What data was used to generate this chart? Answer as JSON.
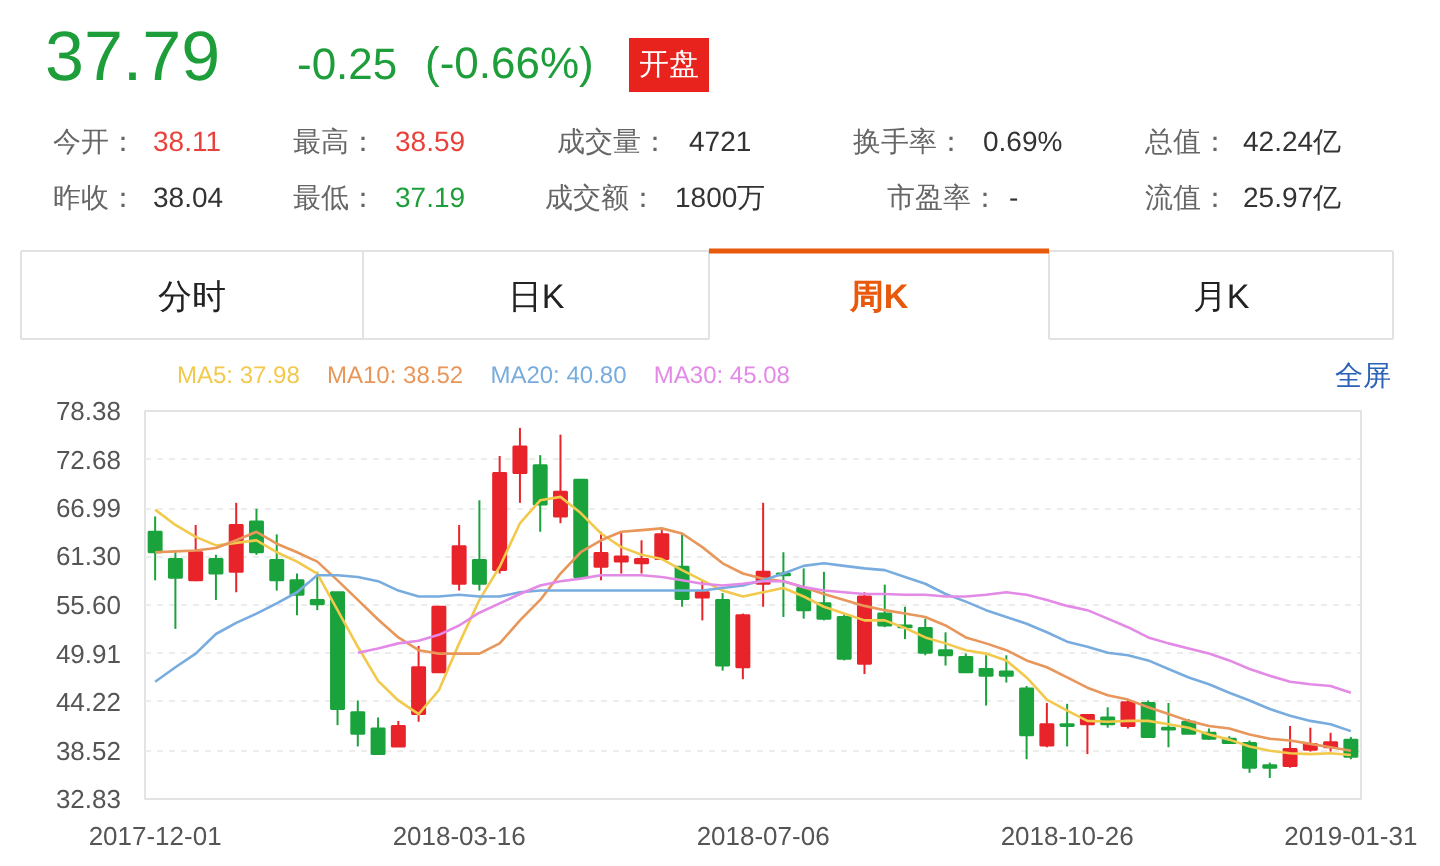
{
  "chart_data": [
    {
      "type": "other",
      "annotations": [
        "37.79",
        "-0.25",
        "(-0.66%)",
        "开盘",
        "今开：",
        "38.11",
        "最高：",
        "38.59",
        "成交量：",
        "4721",
        "换手率：",
        "0.69%",
        "总值：",
        "42.24亿",
        "昨收：",
        "38.04",
        "最低：",
        "37.19",
        "成交额：",
        "1800万",
        "市盈率：",
        "-",
        "流值：",
        "25.97亿",
        "分时",
        "日K",
        "周K",
        "月K"
      ]
    },
    {
      "type": "candlestick",
      "grid": "y",
      "annotations": [
        "全屏"
      ],
      "categories": [
        "2017-12-01",
        null,
        null,
        null,
        null,
        null,
        null,
        null,
        null,
        null,
        null,
        null,
        null,
        null,
        null,
        "2018-03-16",
        null,
        null,
        null,
        null,
        null,
        null,
        null,
        null,
        null,
        null,
        null,
        null,
        null,
        null,
        "2018-07-06",
        null,
        null,
        null,
        null,
        null,
        null,
        null,
        null,
        null,
        null,
        null,
        null,
        null,
        null,
        "2018-10-26",
        null,
        null,
        null,
        null,
        null,
        null,
        null,
        null,
        null,
        null,
        null,
        null,
        null,
        "2019-01-31"
      ],
      "ylim": [
        32.83,
        78.38
      ],
      "yticks": [
        32.83,
        38.52,
        44.22,
        49.91,
        {
          "value": 55.6,
          "label": "55.60"
        },
        {
          "value": 61.3,
          "label": "61.30"
        },
        66.99,
        72.68,
        78.38
      ],
      "ohlc": [
        [
          64.2,
          66.0,
          58.5,
          61.8
        ],
        [
          61.0,
          61.8,
          52.8,
          58.8
        ],
        [
          58.5,
          65.0,
          58.4,
          61.8
        ],
        [
          61.0,
          61.5,
          56.2,
          59.3
        ],
        [
          59.5,
          67.6,
          57.1,
          65.0
        ],
        [
          65.4,
          66.9,
          61.5,
          61.8
        ],
        [
          60.9,
          63.9,
          57.3,
          58.5
        ],
        [
          58.5,
          59.3,
          54.4,
          56.8
        ],
        [
          56.2,
          59.5,
          55.0,
          55.7
        ],
        [
          57.1,
          57.1,
          41.5,
          43.4
        ],
        [
          43.0,
          44.4,
          39.0,
          40.5
        ],
        [
          41.1,
          42.4,
          38.1,
          38.1
        ],
        [
          39.0,
          42.0,
          39.0,
          41.4
        ],
        [
          42.8,
          50.8,
          41.9,
          48.3
        ],
        [
          47.7,
          55.5,
          47.7,
          55.4
        ],
        [
          58.1,
          65.0,
          57.3,
          62.5
        ],
        [
          60.9,
          67.9,
          57.3,
          58.1
        ],
        [
          59.7,
          73.1,
          59.3,
          71.1
        ],
        [
          71.1,
          76.4,
          67.6,
          74.2
        ],
        [
          72.0,
          73.2,
          64.2,
          67.4
        ],
        [
          66.0,
          75.6,
          65.2,
          68.9
        ],
        [
          70.3,
          70.3,
          58.9,
          58.9
        ],
        [
          60.1,
          64.2,
          58.5,
          61.7
        ],
        [
          60.7,
          64.2,
          59.3,
          61.3
        ],
        [
          60.5,
          63.2,
          59.3,
          61.0
        ],
        [
          61.0,
          64.4,
          60.9,
          63.9
        ],
        [
          60.1,
          63.9,
          55.4,
          56.3
        ],
        [
          56.5,
          58.5,
          53.8,
          57.1
        ],
        [
          56.2,
          57.0,
          47.9,
          48.5
        ],
        [
          48.3,
          54.6,
          46.9,
          54.4
        ],
        [
          58.1,
          67.6,
          55.4,
          59.5
        ],
        [
          59.3,
          61.8,
          54.2,
          59.1
        ],
        [
          57.6,
          59.9,
          54.0,
          55.0
        ],
        [
          55.8,
          59.5,
          53.8,
          54.0
        ],
        [
          54.2,
          54.6,
          49.1,
          49.3
        ],
        [
          48.7,
          57.1,
          47.5,
          56.6
        ],
        [
          54.6,
          58.0,
          53.0,
          53.2
        ],
        [
          53.2,
          55.4,
          51.6,
          53.0
        ],
        [
          52.9,
          54.0,
          49.7,
          50.0
        ],
        [
          50.3,
          52.4,
          48.5,
          49.7
        ],
        [
          49.5,
          49.9,
          47.7,
          47.7
        ],
        [
          48.1,
          49.7,
          43.8,
          47.3
        ],
        [
          47.8,
          49.7,
          46.5,
          47.3
        ],
        [
          45.8,
          46.1,
          37.5,
          40.3
        ],
        [
          39.1,
          44.1,
          38.9,
          41.6
        ],
        [
          41.6,
          44.0,
          39.0,
          41.4
        ],
        [
          41.6,
          42.8,
          38.1,
          42.7
        ],
        [
          42.4,
          43.6,
          41.2,
          41.6
        ],
        [
          41.4,
          44.5,
          41.1,
          44.2
        ],
        [
          44.1,
          44.4,
          40.1,
          40.1
        ],
        [
          41.2,
          44.1,
          38.9,
          41.0
        ],
        [
          41.9,
          42.2,
          40.5,
          40.5
        ],
        [
          40.6,
          41.1,
          39.8,
          39.9
        ],
        [
          39.9,
          40.2,
          39.3,
          39.4
        ],
        [
          39.4,
          39.7,
          35.9,
          36.5
        ],
        [
          36.8,
          37.1,
          35.3,
          36.5
        ],
        [
          36.7,
          41.4,
          36.5,
          38.7
        ],
        [
          38.6,
          41.2,
          38.4,
          39.3
        ],
        [
          38.9,
          40.6,
          38.4,
          39.5
        ],
        [
          39.8,
          40.1,
          37.5,
          37.8
        ]
      ],
      "colors": [
        "#1aa33c",
        "#1aa33c",
        "#e8232a",
        "#1aa33c",
        "#e8232a",
        "#1aa33c",
        "#1aa33c",
        "#1aa33c",
        "#1aa33c",
        "#1aa33c",
        "#1aa33c",
        "#1aa33c",
        "#e8232a",
        "#e8232a",
        "#e8232a",
        "#e8232a",
        "#1aa33c",
        "#e8232a",
        "#e8232a",
        "#1aa33c",
        "#e8232a",
        "#1aa33c",
        "#e8232a",
        "#e8232a",
        "#e8232a",
        "#e8232a",
        "#1aa33c",
        "#e8232a",
        "#1aa33c",
        "#e8232a",
        "#e8232a",
        "#1aa33c",
        "#1aa33c",
        "#1aa33c",
        "#1aa33c",
        "#e8232a",
        "#1aa33c",
        "#1aa33c",
        "#1aa33c",
        "#1aa33c",
        "#1aa33c",
        "#1aa33c",
        "#1aa33c",
        "#1aa33c",
        "#e8232a",
        "#1aa33c",
        "#e8232a",
        "#1aa33c",
        "#e8232a",
        "#1aa33c",
        "#1aa33c",
        "#1aa33c",
        "#1aa33c",
        "#1aa33c",
        "#1aa33c",
        "#1aa33c",
        "#e8232a",
        "#e8232a",
        "#e8232a",
        "#1aa33c"
      ],
      "series": [
        {
          "type": "line",
          "name": "MA5: 37.98",
          "color": "#f2c94c",
          "values": [
            66.8,
            65.0,
            63.6,
            62.6,
            62.9,
            63.2,
            61.8,
            60.7,
            59.3,
            55.0,
            50.7,
            46.7,
            44.4,
            42.8,
            45.6,
            51.1,
            56.2,
            60.1,
            65.2,
            67.9,
            68.3,
            66.4,
            64.0,
            62.4,
            61.5,
            61.0,
            59.7,
            58.5,
            57.3,
            56.6,
            57.1,
            57.6,
            56.6,
            55.4,
            54.6,
            53.8,
            53.8,
            52.9,
            51.8,
            51.1,
            50.3,
            49.9,
            49.1,
            47.1,
            44.5,
            43.2,
            42.0,
            41.9,
            42.0,
            42.0,
            41.6,
            41.2,
            40.4,
            39.8,
            39.0,
            38.5,
            38.2,
            38.1,
            38.2,
            38.0
          ]
        },
        {
          "type": "line",
          "name": "MA10: 38.52",
          "color": "#e8965a",
          "values": [
            61.8,
            61.9,
            62.0,
            62.3,
            63.2,
            64.2,
            62.8,
            61.8,
            60.7,
            58.5,
            56.2,
            53.9,
            51.8,
            50.3,
            49.9,
            49.9,
            49.9,
            51.1,
            53.8,
            56.2,
            59.3,
            61.8,
            63.2,
            64.2,
            64.4,
            64.6,
            64.0,
            62.4,
            60.5,
            59.3,
            58.7,
            58.4,
            57.7,
            56.9,
            56.2,
            55.5,
            55.0,
            54.6,
            54.2,
            53.2,
            51.8,
            51.1,
            50.3,
            49.1,
            48.3,
            47.1,
            45.9,
            45.0,
            44.5,
            43.6,
            42.8,
            42.0,
            41.4,
            41.1,
            40.4,
            39.9,
            39.7,
            39.3,
            38.9,
            38.5
          ]
        },
        {
          "type": "line",
          "name": "MA20: 40.80",
          "color": "#78acdf",
          "values": [
            46.6,
            48.3,
            49.9,
            52.2,
            53.5,
            54.6,
            55.8,
            57.1,
            59.1,
            59.1,
            58.9,
            58.4,
            57.3,
            56.6,
            56.6,
            56.8,
            56.6,
            56.6,
            57.1,
            57.3,
            57.3,
            57.3,
            57.3,
            57.3,
            57.3,
            57.3,
            57.3,
            57.3,
            57.6,
            57.9,
            58.5,
            59.3,
            60.2,
            60.5,
            60.2,
            59.9,
            59.7,
            58.9,
            58.1,
            56.9,
            56.0,
            55.0,
            54.2,
            53.4,
            52.4,
            51.3,
            50.7,
            50.0,
            49.7,
            49.1,
            48.1,
            47.1,
            46.3,
            45.3,
            44.4,
            43.4,
            42.6,
            42.0,
            41.6,
            40.8
          ]
        },
        {
          "type": "line",
          "name": "MA30: 45.08",
          "color": "#e28ae6",
          "values": [
            null,
            null,
            null,
            null,
            null,
            null,
            null,
            null,
            null,
            null,
            50.0,
            50.5,
            51.1,
            51.4,
            52.1,
            53.2,
            54.7,
            55.8,
            56.9,
            57.9,
            58.4,
            58.7,
            59.1,
            59.1,
            59.1,
            58.9,
            58.5,
            58.1,
            57.9,
            58.1,
            58.4,
            58.4,
            57.7,
            57.3,
            57.1,
            56.9,
            56.9,
            56.8,
            56.8,
            56.6,
            56.6,
            56.8,
            57.1,
            56.8,
            56.2,
            55.5,
            55.0,
            54.0,
            53.0,
            51.8,
            51.1,
            50.5,
            49.9,
            49.1,
            48.1,
            47.3,
            46.6,
            46.3,
            46.1,
            45.3
          ]
        }
      ]
    }
  ]
}
